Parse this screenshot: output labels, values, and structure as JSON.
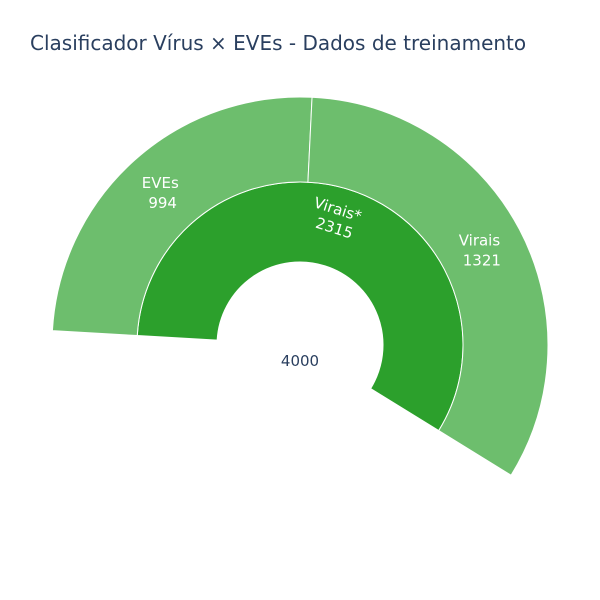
{
  "chart_data": {
    "type": "sunburst",
    "title": "Clasificador Vírus × EVEs - Dados de treinamento",
    "total": 4000,
    "nodes": [
      {
        "label": "Virais*",
        "value": 2315,
        "color": "#2ca02c",
        "children": [
          {
            "label": "EVEs",
            "value": 994,
            "color": "#6dbe6d"
          },
          {
            "label": "Virais",
            "value": 1321,
            "color": "#6dbe6d"
          }
        ]
      }
    ]
  }
}
